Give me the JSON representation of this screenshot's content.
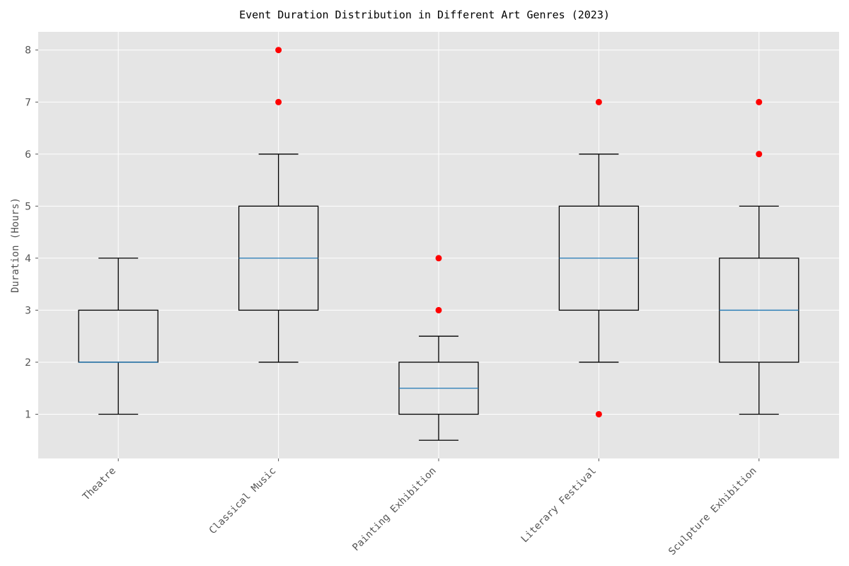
{
  "chart_data": {
    "type": "box",
    "title": "Event Duration Distribution in Different Art Genres (2023)",
    "xlabel": "",
    "ylabel": "Duration (Hours)",
    "ylim": [
      0.15,
      8.35
    ],
    "yticks": [
      1,
      2,
      3,
      4,
      5,
      6,
      7,
      8
    ],
    "grid": true,
    "colors": {
      "plot_background": "#e5e5e5",
      "grid": "#ffffff",
      "box": "#000000",
      "median": "#1f77b4",
      "outlier": "#ff0000",
      "tick_text": "#555555"
    },
    "categories": [
      "Theatre",
      "Classical Music",
      "Painting Exhibition",
      "Literary Festival",
      "Sculpture Exhibition"
    ],
    "boxes": [
      {
        "category": "Theatre",
        "whisker_low": 1,
        "q1": 2,
        "median": 2,
        "q3": 3,
        "whisker_high": 4,
        "outliers": []
      },
      {
        "category": "Classical Music",
        "whisker_low": 2,
        "q1": 3,
        "median": 4,
        "q3": 5,
        "whisker_high": 6,
        "outliers": [
          7,
          8
        ]
      },
      {
        "category": "Painting Exhibition",
        "whisker_low": 0.5,
        "q1": 1,
        "median": 1.5,
        "q3": 2,
        "whisker_high": 2.5,
        "outliers": [
          3,
          4
        ]
      },
      {
        "category": "Literary Festival",
        "whisker_low": 2,
        "q1": 3,
        "median": 4,
        "q3": 5,
        "whisker_high": 6,
        "outliers": [
          1,
          7
        ]
      },
      {
        "category": "Sculpture Exhibition",
        "whisker_low": 1,
        "q1": 2,
        "median": 3,
        "q3": 4,
        "whisker_high": 5,
        "outliers": [
          6,
          7
        ]
      }
    ]
  }
}
